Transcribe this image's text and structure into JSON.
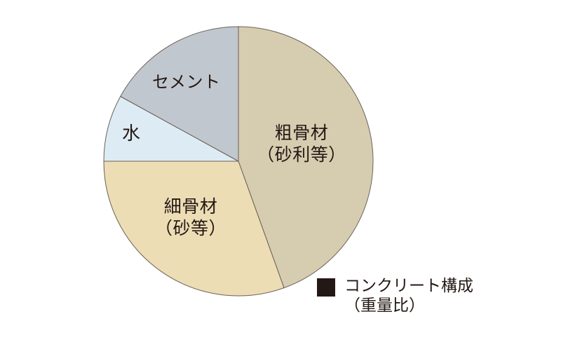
{
  "colors": {
    "background": "#ffffff",
    "stroke": "#6b6157",
    "text": "#231815",
    "legend_square": "#231815"
  },
  "legend": {
    "title": "コンクリート構成",
    "subtitle": "（重量比）"
  },
  "chart_data": {
    "type": "pie",
    "title": "コンクリート構成（重量比）",
    "start_angle_deg": 0,
    "direction": "clockwise",
    "legend_position": "bottom-right",
    "units": "%",
    "segments": [
      {
        "name": "粗骨材",
        "qualifier": "（砂利等）",
        "value": 44.5,
        "color": "#d6cdb0"
      },
      {
        "name": "細骨材",
        "qualifier": "（砂等）",
        "value": 30.5,
        "color": "#edddb5"
      },
      {
        "name": "水",
        "qualifier": "",
        "value": 8,
        "color": "#ddecf4"
      },
      {
        "name": "セメント",
        "qualifier": "",
        "value": 17,
        "color": "#c1c7ce"
      }
    ]
  }
}
